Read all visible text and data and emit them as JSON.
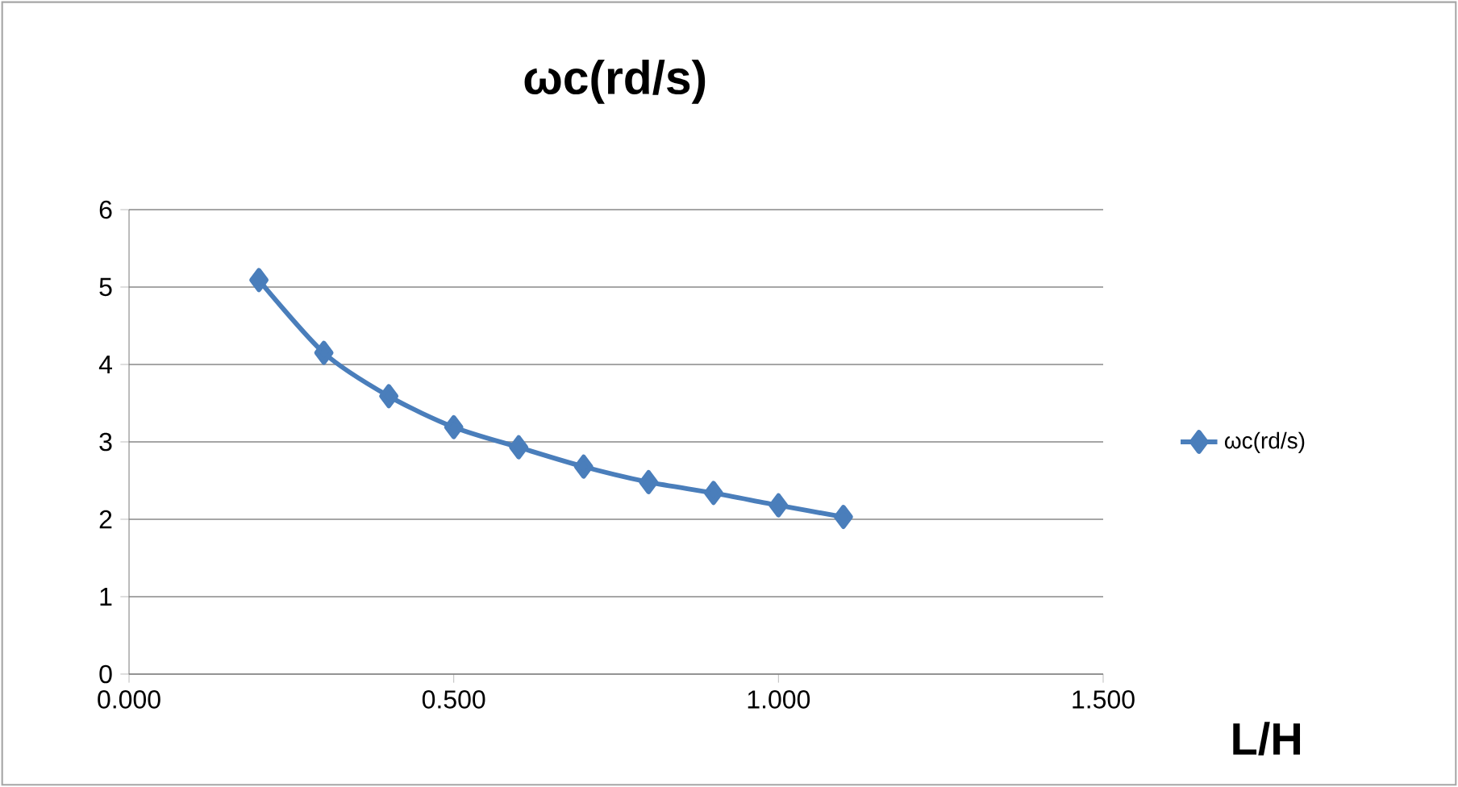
{
  "chart_data": {
    "type": "line",
    "title": "ωc(rd/s)",
    "xlabel": "L/H",
    "x": [
      0.2,
      0.3,
      0.4,
      0.5,
      0.6,
      0.7,
      0.8,
      0.9,
      1.0,
      1.1
    ],
    "series": [
      {
        "name": "ωc(rd/s)",
        "color": "#4a7ebb",
        "values": [
          5.09,
          4.15,
          3.59,
          3.19,
          2.93,
          2.68,
          2.48,
          2.34,
          2.18,
          2.03
        ]
      }
    ],
    "xlim": [
      0,
      1.5
    ],
    "ylim": [
      0,
      6
    ],
    "xticks": [
      {
        "value": 0,
        "label": "0.000"
      },
      {
        "value": 0.5,
        "label": "0.500"
      },
      {
        "value": 1.0,
        "label": "1.000"
      },
      {
        "value": 1.5,
        "label": "1.500"
      }
    ],
    "yticks": [
      0,
      1,
      2,
      3,
      4,
      5,
      6
    ],
    "grid": "y",
    "legend": "right",
    "marker": "diamond",
    "line_style": "solid"
  }
}
